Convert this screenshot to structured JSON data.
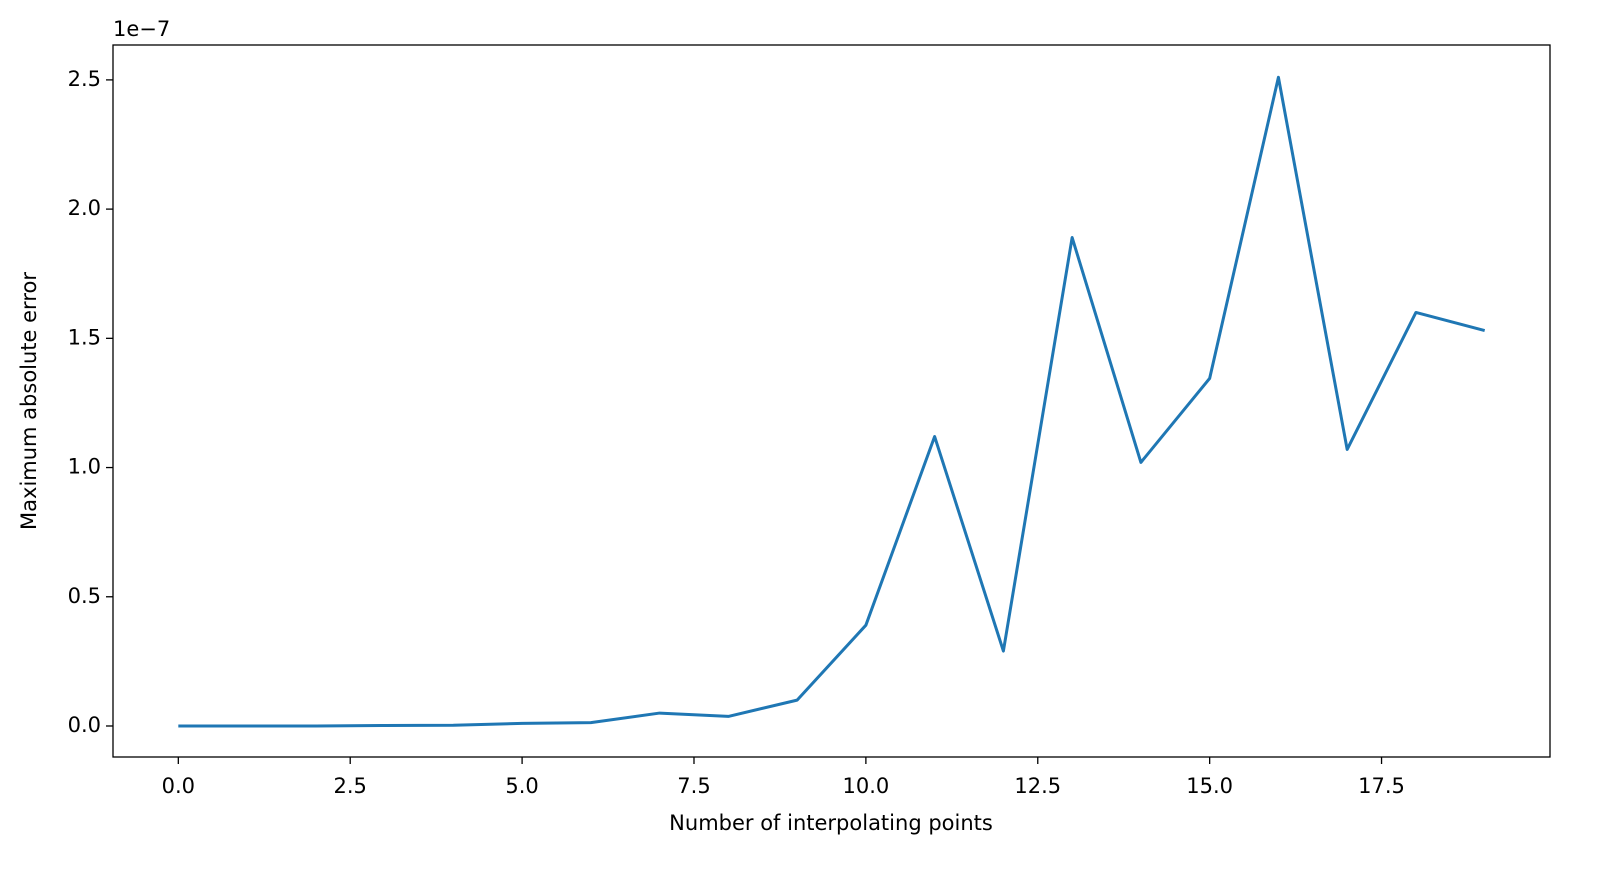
{
  "chart_data": {
    "type": "line",
    "x_label": "Number of interpolating points",
    "y_label": "Maximum absolute error",
    "y_offset_text": "1e−7",
    "x": [
      0,
      1,
      2,
      3,
      4,
      5,
      6,
      7,
      8,
      9,
      10,
      11,
      12,
      13,
      14,
      15,
      16,
      17,
      18,
      19
    ],
    "series": [
      {
        "color": "#1f77b4",
        "values": [
          0.0,
          0.0,
          0.0,
          0.002,
          0.003,
          0.01,
          0.013,
          0.05,
          0.037,
          0.1,
          0.39,
          1.12,
          0.29,
          1.89,
          1.02,
          1.345,
          2.51,
          1.07,
          1.6,
          1.53
        ]
      }
    ],
    "xlim": [
      -0.95,
      19.95
    ],
    "ylim": [
      -0.12,
      2.635
    ],
    "xticks": [
      {
        "value": 0,
        "label": "0.0"
      },
      2.5,
      {
        "value": 5,
        "label": "5.0"
      },
      7.5,
      {
        "value": 10,
        "label": "10.0"
      },
      12.5,
      {
        "value": 15,
        "label": "15.0"
      },
      17.5
    ],
    "yticks": [
      {
        "value": 0,
        "label": "0.0"
      },
      0.5,
      {
        "value": 1,
        "label": "1.0"
      },
      1.5,
      {
        "value": 2,
        "label": "2.0"
      },
      2.5
    ],
    "grid": false
  }
}
